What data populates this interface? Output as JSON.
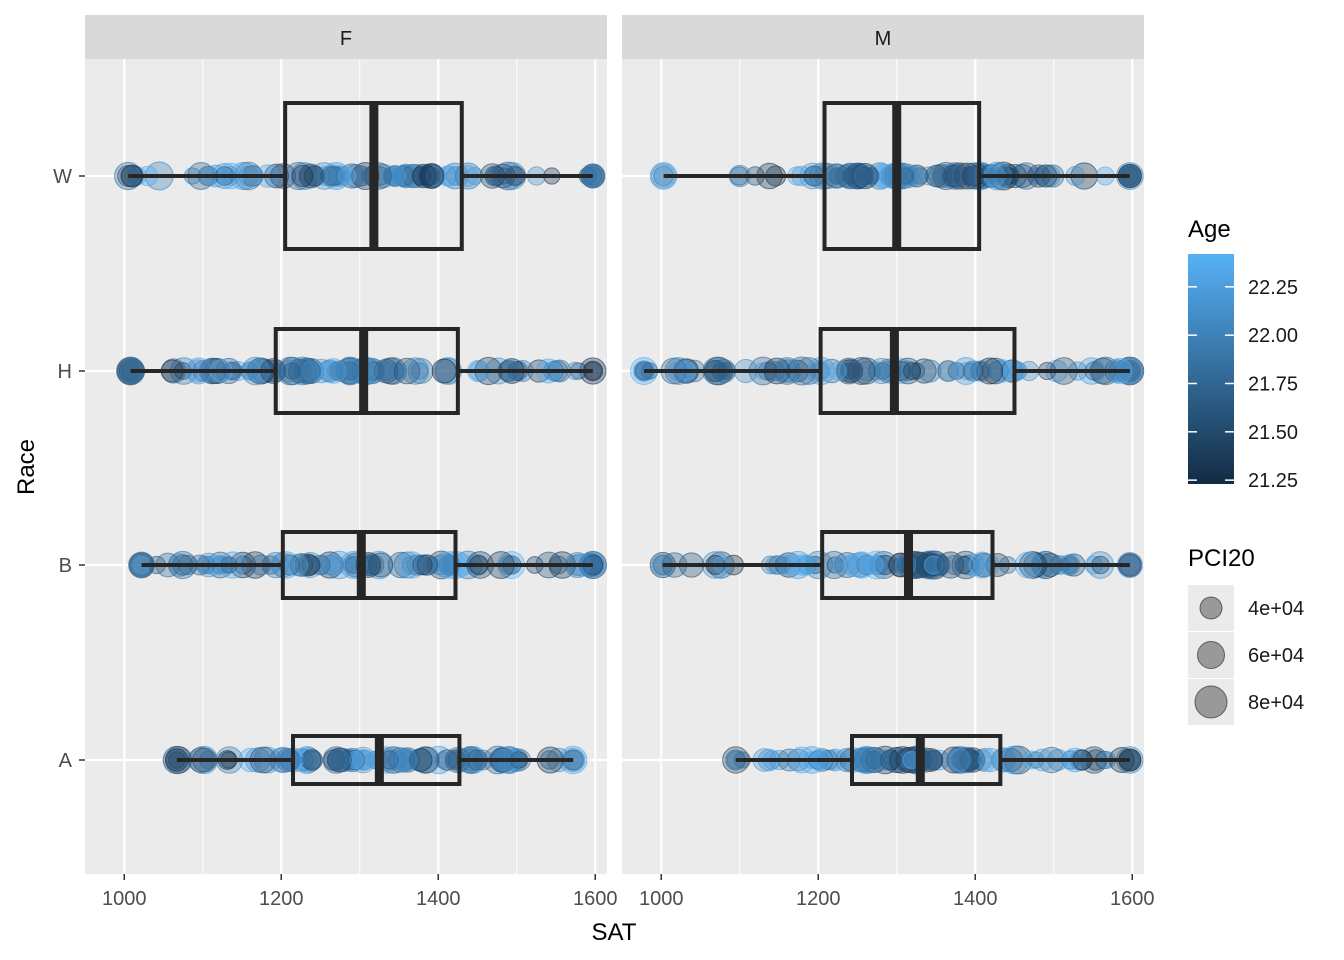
{
  "chart_data": {
    "type": "boxplot_with_jittered_points",
    "xlabel": "SAT",
    "ylabel": "Race",
    "facets": [
      "F",
      "M"
    ],
    "y_categories": [
      "A",
      "B",
      "H",
      "W"
    ],
    "xlim": [
      950,
      1615
    ],
    "x_ticks": [
      1000,
      1200,
      1400,
      1600
    ],
    "x_minor": [
      1100,
      1300,
      1500
    ],
    "grid": true,
    "legend_position": "right",
    "legend_color": {
      "title": "Age",
      "ticks": [
        "21.25",
        "21.50",
        "21.75",
        "22.00",
        "22.25"
      ],
      "tick_values": [
        21.25,
        21.5,
        21.75,
        22.0,
        22.25
      ],
      "range": [
        21.23,
        22.42
      ],
      "low_color": "#132B43",
      "high_color": "#56B1F7"
    },
    "legend_size": {
      "title": "PCI20",
      "labels": [
        "4e+04",
        "6e+04",
        "8e+04"
      ]
    },
    "boxes": [
      {
        "facet": "F",
        "race": "W",
        "min": 1005,
        "q1": 1205,
        "median": 1318,
        "q3": 1430,
        "max": 1597
      },
      {
        "facet": "F",
        "race": "H",
        "min": 1008,
        "q1": 1193,
        "median": 1305,
        "q3": 1425,
        "max": 1597
      },
      {
        "facet": "F",
        "race": "B",
        "min": 1022,
        "q1": 1202,
        "median": 1302,
        "q3": 1422,
        "max": 1597
      },
      {
        "facet": "F",
        "race": "A",
        "min": 1067,
        "q1": 1215,
        "median": 1325,
        "q3": 1427,
        "max": 1572
      },
      {
        "facet": "M",
        "race": "W",
        "min": 1003,
        "q1": 1208,
        "median": 1300,
        "q3": 1405,
        "max": 1597
      },
      {
        "facet": "M",
        "race": "H",
        "min": 978,
        "q1": 1203,
        "median": 1297,
        "q3": 1450,
        "max": 1597
      },
      {
        "facet": "M",
        "race": "B",
        "min": 1002,
        "q1": 1205,
        "median": 1315,
        "q3": 1422,
        "max": 1597
      },
      {
        "facet": "M",
        "race": "A",
        "min": 1095,
        "q1": 1243,
        "median": 1330,
        "q3": 1432,
        "max": 1597
      }
    ]
  }
}
